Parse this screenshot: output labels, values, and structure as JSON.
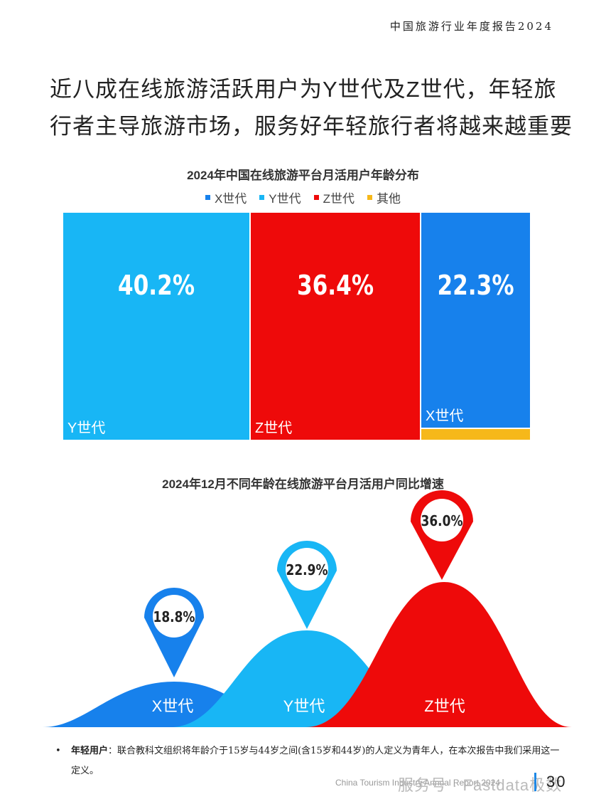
{
  "header": {
    "title": "中国旅游行业年度报告2024"
  },
  "main_title": {
    "line1": "近八成在线旅游活跃用户为Y世代及Z世代，年轻旅",
    "line2": "行者主导旅游市场，服务好年轻旅行者将越来越重要"
  },
  "colors": {
    "x_gen": "#1781ec",
    "y_gen": "#18b6f5",
    "z_gen": "#ee0a0a",
    "other": "#f6b81a"
  },
  "chart_data": [
    {
      "type": "treemap",
      "title": "2024年中国在线旅游平台月活用户年龄分布",
      "legend": [
        "X世代",
        "Y世代",
        "Z世代",
        "其他"
      ],
      "legend_position": "top",
      "items": [
        {
          "name": "Y世代",
          "value": 40.2,
          "label": "40.2%"
        },
        {
          "name": "Z世代",
          "value": 36.4,
          "label": "36.4%"
        },
        {
          "name": "X世代",
          "value": 22.3,
          "label": "22.3%"
        },
        {
          "name": "其他",
          "value": 1.1,
          "label": ""
        }
      ]
    },
    {
      "type": "area",
      "title": "2024年12月不同年龄在线旅游平台月活用户同比增速",
      "categories": [
        "X世代",
        "Y世代",
        "Z世代"
      ],
      "values": [
        18.8,
        22.9,
        36.0
      ],
      "labels": [
        "18.8%",
        "22.9%",
        "36.0%"
      ]
    }
  ],
  "footnote": {
    "bullet": "•",
    "term": "年轻用户",
    "text": "：联合教科文组织将年龄介于15岁与44岁之间(含15岁和44岁)的人定义为青年人，在本次报告中我们采用这一定义。"
  },
  "footer": {
    "report_name": "China Tourism Industry Annual Report 2024",
    "watermark": "服务号 · Fastdata极数",
    "page": "30"
  }
}
